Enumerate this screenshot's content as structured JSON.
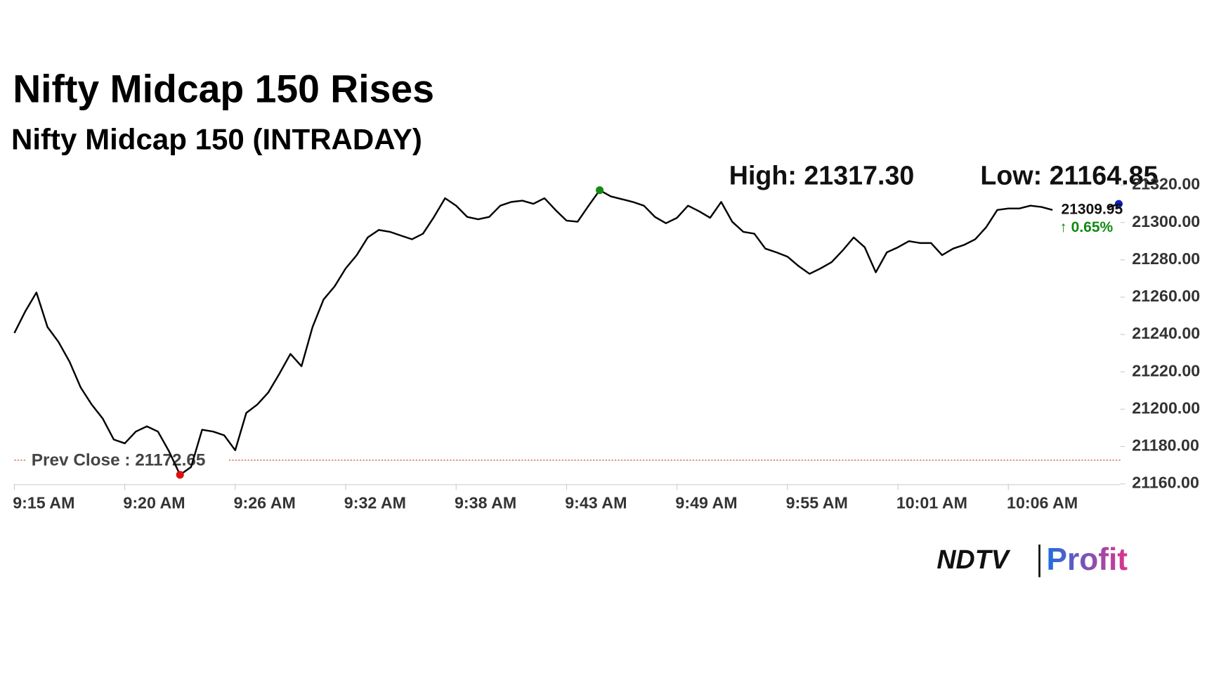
{
  "chart_data": {
    "type": "line",
    "title": "Nifty Midcap 150 Rises",
    "subtitle": "Nifty Midcap 150 (INTRADAY)",
    "categories": [
      "9:15 AM",
      null,
      null,
      null,
      null,
      null,
      null,
      null,
      null,
      null,
      "9:20 AM",
      null,
      null,
      null,
      null,
      null,
      null,
      null,
      null,
      null,
      "9:26 AM",
      null,
      null,
      null,
      null,
      null,
      null,
      null,
      null,
      null,
      "9:32 AM",
      null,
      null,
      null,
      null,
      null,
      null,
      null,
      null,
      null,
      "9:38 AM",
      null,
      null,
      null,
      null,
      null,
      null,
      null,
      null,
      null,
      "9:43 AM",
      null,
      null,
      null,
      null,
      null,
      null,
      null,
      null,
      null,
      "9:49 AM",
      null,
      null,
      null,
      null,
      null,
      null,
      null,
      null,
      null,
      "9:55 AM",
      null,
      null,
      null,
      null,
      null,
      null,
      null,
      null,
      null,
      "10:01 AM",
      null,
      null,
      null,
      null,
      null,
      null,
      null,
      null,
      null,
      "10:06 AM",
      null,
      null,
      null,
      null,
      null,
      null,
      null,
      null,
      null,
      null
    ],
    "series": [
      {
        "name": "Nifty Midcap 150",
        "color": "#000000",
        "values": [
          21240.8,
          21252.5,
          21262.5,
          21244,
          21236,
          21225.4,
          21211.7,
          21202.5,
          21195,
          21183.75,
          21181.7,
          21188,
          21190.8,
          21188,
          21177.5,
          21164.85,
          21169,
          21189,
          21188,
          21186,
          21178,
          21198,
          21202.5,
          21209,
          21219,
          21229.6,
          21223,
          21244,
          21258.75,
          21265.8,
          21275.4,
          21282.5,
          21292,
          21296,
          21295,
          21293,
          21291,
          21294,
          21303,
          21313,
          21309,
          21303,
          21301.7,
          21303,
          21309,
          21311,
          21311.7,
          21310,
          21313,
          21306.7,
          21301,
          21300.4,
          21309,
          21317.3,
          21314,
          21312.5,
          21311,
          21309,
          21303,
          21299.6,
          21302.5,
          21309,
          21306,
          21302.5,
          21311,
          21300.4,
          21295,
          21294,
          21286,
          21284,
          21281.7,
          21276.7,
          21272.5,
          21275.4,
          21278.75,
          21285,
          21292,
          21286.7,
          21273.3,
          21284,
          21286.7,
          21290,
          21289,
          21289,
          21282.5,
          21286,
          21288,
          21291,
          21297.5,
          21306.7,
          21307.5,
          21307.5,
          21309,
          21308.3,
          21306.7,
          null,
          null,
          null,
          null,
          21308,
          21309.95
        ]
      }
    ],
    "ylim": [
      21160,
      21320
    ],
    "yticks": [
      {
        "value": 21160,
        "label": "21160.00"
      },
      {
        "value": 21180,
        "label": "21180.00"
      },
      {
        "value": 21200,
        "label": "21200.00"
      },
      {
        "value": 21220,
        "label": "21220.00"
      },
      {
        "value": 21240,
        "label": "21240.00"
      },
      {
        "value": 21260,
        "label": "21260.00"
      },
      {
        "value": 21280,
        "label": "21280.00"
      },
      {
        "value": 21300,
        "label": "21300.00"
      },
      {
        "value": 21320,
        "label": "21320.00"
      }
    ],
    "high": {
      "value": 21317.3,
      "label": "High: 21317.30",
      "color": "#138a13"
    },
    "low": {
      "value": 21164.85,
      "label": "Low: 21164.85",
      "color": "#e01010"
    },
    "prev_close": {
      "value": 21172.65,
      "label": "Prev Close : 21172.65",
      "color": "#c0392b"
    },
    "last": {
      "value": 21309.95,
      "label": "21309.95",
      "color": "#1020c0"
    },
    "change": {
      "value": 0.65,
      "label": "↑ 0.65%",
      "color": "#138a13"
    },
    "brand": {
      "left": "NDTV",
      "right": "Profit"
    }
  }
}
